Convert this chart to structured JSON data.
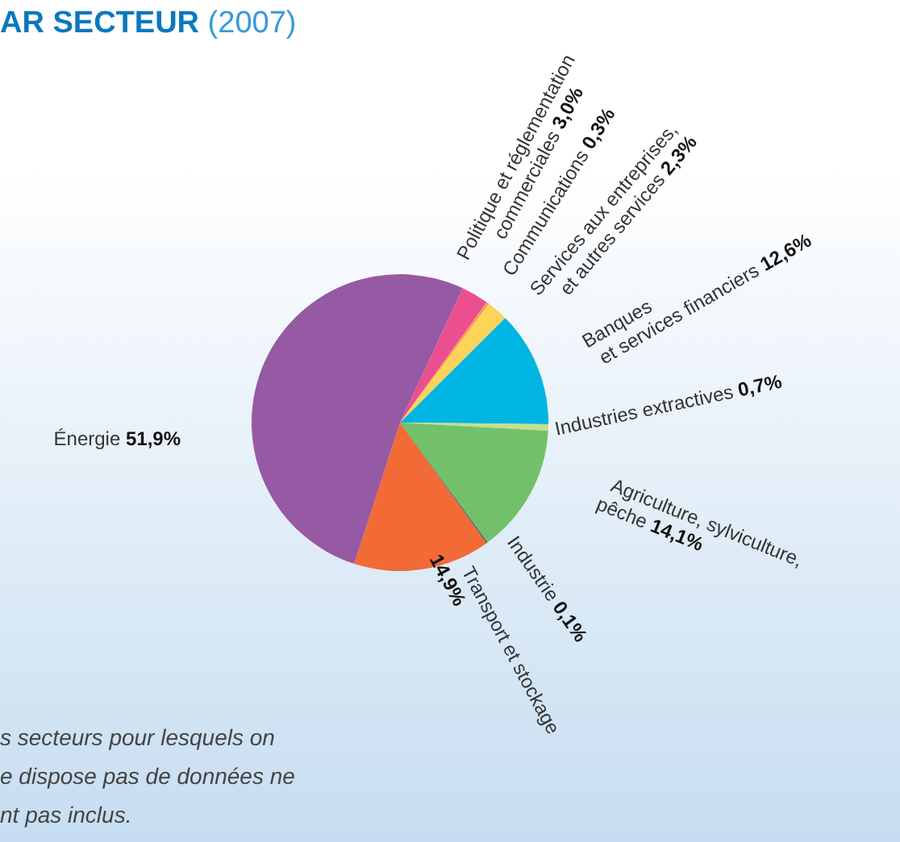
{
  "chart_data": {
    "type": "pie",
    "title": "AR SECTEUR",
    "subtitle": "(2007)",
    "categories": [
      "Politique et réglementation commerciales",
      "Communications",
      "Services aux entreprises, et autres services",
      "Banques et services financiers",
      "Industries extractives",
      "Agriculture, sylviculture, pêche",
      "Industrie",
      "Transport et stockage",
      "Énergie"
    ],
    "values": [
      3.0,
      0.3,
      2.3,
      12.6,
      0.7,
      14.1,
      0.1,
      14.9,
      51.9
    ],
    "value_labels": [
      "3,0%",
      "0,3%",
      "2,3%",
      "12,6%",
      "0,7%",
      "14,1%",
      "0,1%",
      "14,9%",
      "51,9%"
    ],
    "colors": [
      "#ec4f8f",
      "#f6a04d",
      "#fdd45a",
      "#00b5e2",
      "#c5e08a",
      "#72c16a",
      "#1f3c6e",
      "#f26a35",
      "#9659a3"
    ],
    "annotations": [
      "s secteurs pour lesquels on",
      "e dispose pas de données ne",
      "nt pas inclus."
    ]
  }
}
